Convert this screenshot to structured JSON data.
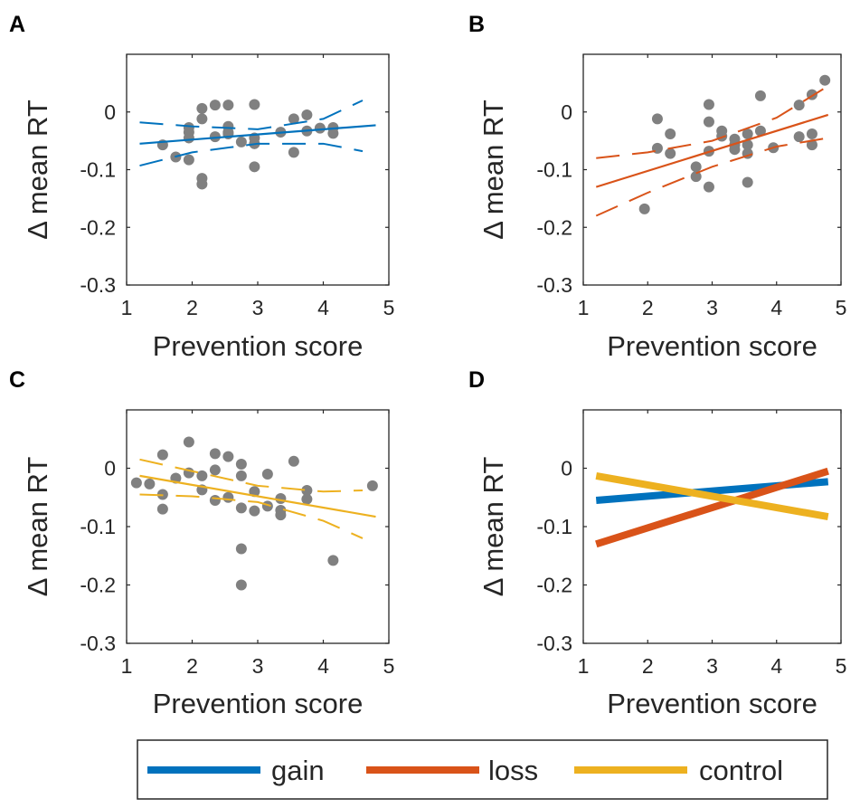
{
  "colors": {
    "gain": "#0072BD",
    "loss": "#D95319",
    "control": "#EDB120",
    "point": "#808080",
    "axis": "#262626"
  },
  "legend": {
    "items": [
      {
        "key": "gain",
        "label": "gain"
      },
      {
        "key": "loss",
        "label": "loss"
      },
      {
        "key": "control",
        "label": "control"
      }
    ]
  },
  "chart_data": [
    {
      "panel": "A",
      "type": "scatter",
      "xlabel": "Prevention score",
      "ylabel": "Δ mean RT",
      "xlim": [
        1,
        5
      ],
      "ylim": [
        -0.3,
        0.1
      ],
      "xticks": [
        1,
        2,
        3,
        4,
        5
      ],
      "yticks": [
        0,
        -0.1,
        -0.2,
        -0.3
      ],
      "ytick_labels": [
        "0",
        "-0.1",
        "-0.2",
        "-0.3"
      ],
      "condition": "gain",
      "points": [
        [
          1.55,
          -0.057
        ],
        [
          1.75,
          -0.078
        ],
        [
          1.95,
          -0.083
        ],
        [
          1.95,
          -0.045
        ],
        [
          1.95,
          -0.035
        ],
        [
          1.95,
          -0.027
        ],
        [
          2.15,
          0.006
        ],
        [
          2.15,
          -0.012
        ],
        [
          2.15,
          -0.115
        ],
        [
          2.15,
          -0.125
        ],
        [
          2.35,
          0.012
        ],
        [
          2.35,
          -0.043
        ],
        [
          2.55,
          0.012
        ],
        [
          2.55,
          -0.025
        ],
        [
          2.55,
          -0.035
        ],
        [
          2.55,
          -0.038
        ],
        [
          2.75,
          -0.052
        ],
        [
          2.95,
          0.013
        ],
        [
          2.95,
          -0.045
        ],
        [
          2.95,
          -0.055
        ],
        [
          2.95,
          -0.095
        ],
        [
          3.35,
          -0.035
        ],
        [
          3.55,
          -0.012
        ],
        [
          3.55,
          -0.07
        ],
        [
          3.75,
          -0.005
        ],
        [
          3.75,
          -0.033
        ],
        [
          3.95,
          -0.028
        ],
        [
          4.15,
          -0.037
        ],
        [
          4.15,
          -0.027
        ]
      ],
      "fit": {
        "x": [
          1.2,
          4.8
        ],
        "y": [
          -0.055,
          -0.023
        ]
      },
      "ci_upper": {
        "x": [
          1.2,
          2.0,
          3.0,
          4.0,
          4.6
        ],
        "y": [
          -0.018,
          -0.025,
          -0.03,
          -0.012,
          0.02
        ]
      },
      "ci_lower": {
        "x": [
          1.2,
          2.0,
          3.0,
          4.0,
          4.6
        ],
        "y": [
          -0.093,
          -0.07,
          -0.055,
          -0.055,
          -0.068
        ]
      }
    },
    {
      "panel": "B",
      "type": "scatter",
      "xlabel": "Prevention score",
      "ylabel": "Δ mean RT",
      "xlim": [
        1,
        5
      ],
      "ylim": [
        -0.3,
        0.1
      ],
      "xticks": [
        1,
        2,
        3,
        4,
        5
      ],
      "yticks": [
        0,
        -0.1,
        -0.2,
        -0.3
      ],
      "ytick_labels": [
        "0",
        "-0.1",
        "-0.2",
        "-0.3"
      ],
      "condition": "loss",
      "points": [
        [
          1.95,
          -0.168
        ],
        [
          2.15,
          -0.012
        ],
        [
          2.15,
          -0.063
        ],
        [
          2.35,
          -0.038
        ],
        [
          2.35,
          -0.072
        ],
        [
          2.75,
          -0.095
        ],
        [
          2.75,
          -0.112
        ],
        [
          2.95,
          0.013
        ],
        [
          2.95,
          -0.017
        ],
        [
          2.95,
          -0.068
        ],
        [
          2.95,
          -0.13
        ],
        [
          3.15,
          -0.033
        ],
        [
          3.15,
          -0.042
        ],
        [
          3.35,
          -0.047
        ],
        [
          3.35,
          -0.057
        ],
        [
          3.35,
          -0.065
        ],
        [
          3.55,
          -0.038
        ],
        [
          3.55,
          -0.057
        ],
        [
          3.55,
          -0.072
        ],
        [
          3.55,
          -0.122
        ],
        [
          3.75,
          0.028
        ],
        [
          3.75,
          -0.033
        ],
        [
          3.95,
          -0.062
        ],
        [
          4.35,
          0.012
        ],
        [
          4.35,
          -0.043
        ],
        [
          4.55,
          0.03
        ],
        [
          4.55,
          -0.038
        ],
        [
          4.55,
          -0.057
        ],
        [
          4.75,
          0.055
        ]
      ],
      "fit": {
        "x": [
          1.2,
          4.8
        ],
        "y": [
          -0.13,
          -0.005
        ]
      },
      "ci_upper": {
        "x": [
          1.2,
          2.0,
          3.0,
          4.0,
          4.8
        ],
        "y": [
          -0.08,
          -0.07,
          -0.05,
          -0.01,
          0.045
        ]
      },
      "ci_lower": {
        "x": [
          1.2,
          2.0,
          3.0,
          4.0,
          4.8
        ],
        "y": [
          -0.18,
          -0.14,
          -0.095,
          -0.06,
          -0.045
        ]
      }
    },
    {
      "panel": "C",
      "type": "scatter",
      "xlabel": "Prevention score",
      "ylabel": "Δ mean RT",
      "xlim": [
        1,
        5
      ],
      "ylim": [
        -0.3,
        0.1
      ],
      "xticks": [
        1,
        2,
        3,
        4,
        5
      ],
      "yticks": [
        0,
        -0.1,
        -0.2,
        -0.3
      ],
      "ytick_labels": [
        "0",
        "-0.1",
        "-0.2",
        "-0.3"
      ],
      "condition": "control",
      "points": [
        [
          1.15,
          -0.025
        ],
        [
          1.35,
          -0.027
        ],
        [
          1.55,
          0.023
        ],
        [
          1.55,
          -0.045
        ],
        [
          1.55,
          -0.07
        ],
        [
          1.75,
          -0.017
        ],
        [
          1.95,
          0.045
        ],
        [
          1.95,
          -0.008
        ],
        [
          2.15,
          -0.013
        ],
        [
          2.15,
          -0.037
        ],
        [
          2.35,
          0.025
        ],
        [
          2.35,
          -0.003
        ],
        [
          2.35,
          -0.055
        ],
        [
          2.55,
          0.02
        ],
        [
          2.55,
          -0.05
        ],
        [
          2.75,
          0.007
        ],
        [
          2.75,
          -0.013
        ],
        [
          2.75,
          -0.068
        ],
        [
          2.75,
          -0.138
        ],
        [
          2.75,
          -0.2
        ],
        [
          2.95,
          -0.04
        ],
        [
          2.95,
          -0.073
        ],
        [
          3.15,
          -0.01
        ],
        [
          3.15,
          -0.065
        ],
        [
          3.35,
          -0.052
        ],
        [
          3.35,
          -0.072
        ],
        [
          3.35,
          -0.08
        ],
        [
          3.55,
          0.012
        ],
        [
          3.75,
          -0.038
        ],
        [
          3.75,
          -0.053
        ],
        [
          4.15,
          -0.158
        ],
        [
          4.75,
          -0.03
        ]
      ],
      "fit": {
        "x": [
          1.2,
          4.8
        ],
        "y": [
          -0.013,
          -0.083
        ]
      },
      "ci_upper": {
        "x": [
          1.2,
          2.0,
          3.0,
          4.0,
          4.6
        ],
        "y": [
          0.015,
          -0.005,
          -0.03,
          -0.04,
          -0.038
        ]
      },
      "ci_lower": {
        "x": [
          1.2,
          2.0,
          3.0,
          4.0,
          4.6
        ],
        "y": [
          -0.045,
          -0.048,
          -0.058,
          -0.09,
          -0.12
        ]
      }
    },
    {
      "panel": "D",
      "type": "line",
      "xlabel": "Prevention score",
      "ylabel": "Δ mean RT",
      "xlim": [
        1,
        5
      ],
      "ylim": [
        -0.3,
        0.1
      ],
      "xticks": [
        1,
        2,
        3,
        4,
        5
      ],
      "yticks": [
        0,
        -0.1,
        -0.2,
        -0.3
      ],
      "ytick_labels": [
        "0",
        "-0.1",
        "-0.2",
        "-0.3"
      ],
      "series": [
        {
          "name": "gain",
          "x": [
            1.2,
            4.8
          ],
          "y": [
            -0.055,
            -0.023
          ]
        },
        {
          "name": "loss",
          "x": [
            1.2,
            4.8
          ],
          "y": [
            -0.13,
            -0.005
          ]
        },
        {
          "name": "control",
          "x": [
            1.2,
            4.8
          ],
          "y": [
            -0.013,
            -0.083
          ]
        }
      ]
    }
  ]
}
